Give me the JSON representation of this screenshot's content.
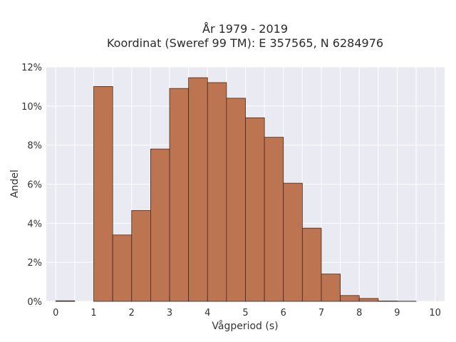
{
  "chart_data": {
    "type": "bar",
    "title": "År 1979 - 2019",
    "subtitle": "Koordinat (Sweref 99 TM): E 357565, N 6284976",
    "xlabel": "Vågperiod (s)",
    "ylabel": "Andel",
    "xlim": [
      -0.25,
      10.25
    ],
    "ylim": [
      0,
      12
    ],
    "x_ticks": [
      "0",
      "1",
      "2",
      "3",
      "4",
      "5",
      "6",
      "7",
      "8",
      "9",
      "10"
    ],
    "y_ticks": [
      "0%",
      "2%",
      "4%",
      "6%",
      "8%",
      "10%",
      "12%"
    ],
    "grid": true,
    "bin_width": 0.5,
    "bins": [
      {
        "x0": 0.0,
        "value": 0.03
      },
      {
        "x0": 0.5,
        "value": 0.0
      },
      {
        "x0": 1.0,
        "value": 11.0
      },
      {
        "x0": 1.5,
        "value": 3.4
      },
      {
        "x0": 2.0,
        "value": 4.65
      },
      {
        "x0": 2.5,
        "value": 7.8
      },
      {
        "x0": 3.0,
        "value": 10.9
      },
      {
        "x0": 3.5,
        "value": 11.45
      },
      {
        "x0": 4.0,
        "value": 11.2
      },
      {
        "x0": 4.5,
        "value": 10.4
      },
      {
        "x0": 5.0,
        "value": 9.4
      },
      {
        "x0": 5.5,
        "value": 8.4
      },
      {
        "x0": 6.0,
        "value": 6.05
      },
      {
        "x0": 6.5,
        "value": 3.75
      },
      {
        "x0": 7.0,
        "value": 1.4
      },
      {
        "x0": 7.5,
        "value": 0.3
      },
      {
        "x0": 8.0,
        "value": 0.15
      },
      {
        "x0": 8.5,
        "value": 0.02
      },
      {
        "x0": 9.0,
        "value": 0.01
      }
    ],
    "colors": {
      "bar_fill": "#bd7551",
      "bar_stroke": "#3d2a20",
      "plot_bg": "#eaeaf2",
      "grid": "#ffffff"
    }
  }
}
